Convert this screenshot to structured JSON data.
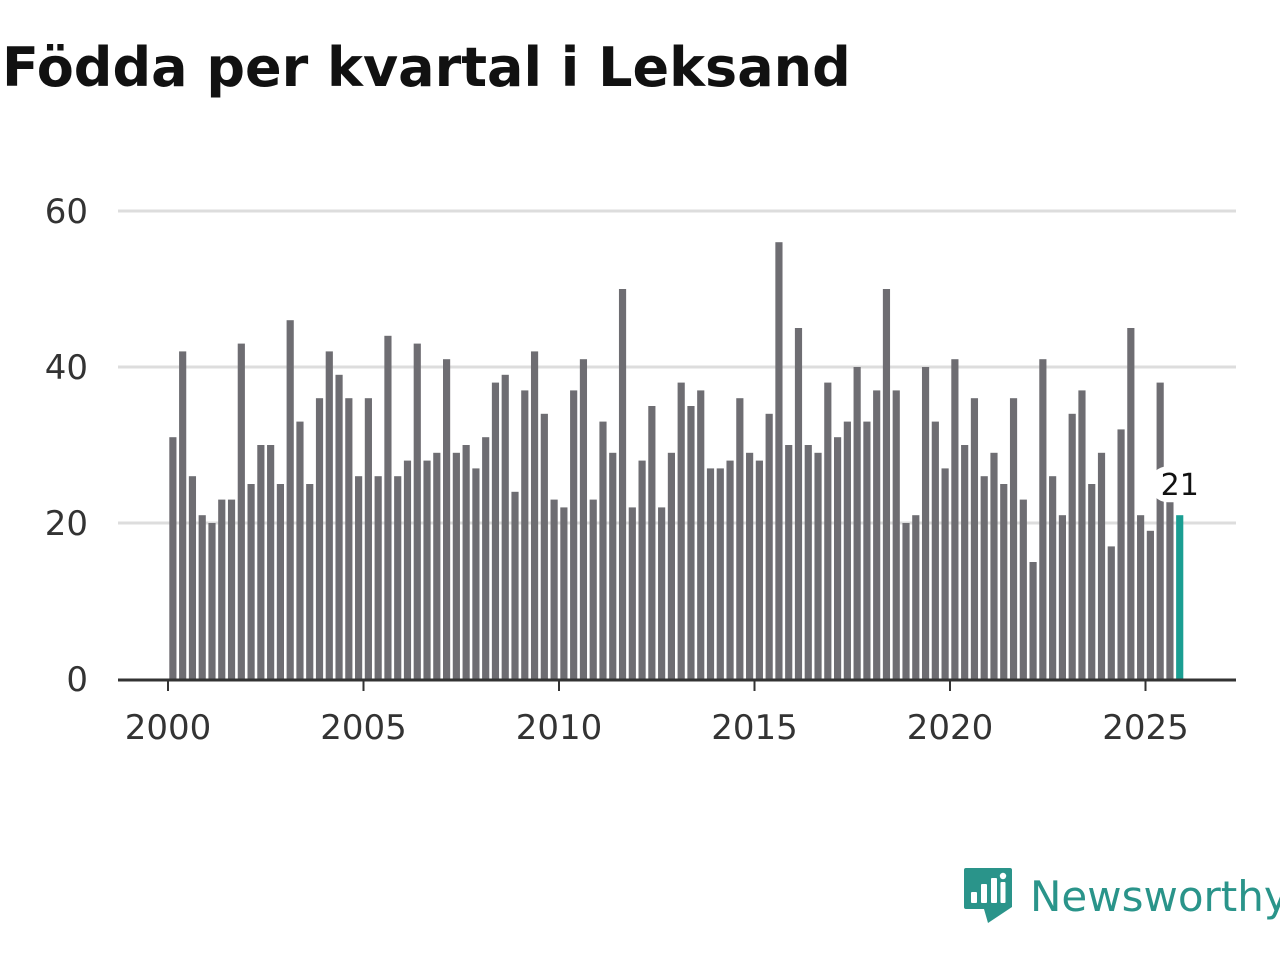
{
  "chart_data": {
    "type": "bar",
    "title": "Födda per kvartal i Leksand",
    "xlabel": "",
    "ylabel": "",
    "ylim": [
      0,
      60
    ],
    "yticks": [
      0,
      20,
      40,
      60
    ],
    "xticks": [
      2000,
      2005,
      2010,
      2015,
      2020,
      2025
    ],
    "x_start_year": 2000,
    "periods_per_year": 4,
    "values": [
      31,
      42,
      26,
      21,
      20,
      23,
      23,
      43,
      25,
      30,
      30,
      25,
      46,
      33,
      25,
      36,
      42,
      39,
      36,
      26,
      36,
      26,
      44,
      26,
      28,
      43,
      28,
      29,
      41,
      29,
      30,
      27,
      31,
      38,
      39,
      24,
      37,
      42,
      34,
      23,
      22,
      37,
      41,
      23,
      33,
      29,
      50,
      22,
      28,
      35,
      22,
      29,
      38,
      35,
      37,
      27,
      27,
      28,
      36,
      29,
      28,
      34,
      56,
      30,
      45,
      30,
      29,
      38,
      31,
      33,
      40,
      33,
      37,
      50,
      37,
      20,
      21,
      40,
      33,
      27,
      41,
      30,
      36,
      26,
      29,
      25,
      36,
      23,
      15,
      41,
      26,
      21,
      34,
      37,
      25,
      29,
      17,
      32,
      45,
      21,
      19,
      38,
      23,
      21
    ],
    "bar_color": "#6e6d72",
    "highlight_color": "#1a9e92",
    "highlight_last": true,
    "annotation": {
      "label": "21"
    }
  },
  "brand": {
    "name": "Newsworthy",
    "color": "#2a948a"
  }
}
